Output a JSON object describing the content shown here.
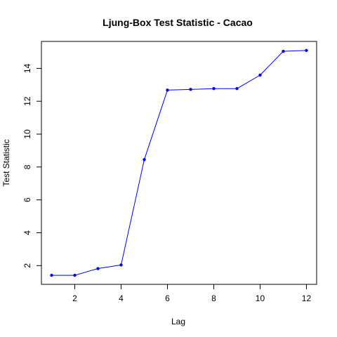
{
  "chart_data": {
    "type": "line",
    "title": "Ljung-Box Test Statistic - Cacao",
    "xlabel": "Lag",
    "ylabel": "Test Statistic",
    "x": [
      1,
      2,
      3,
      4,
      5,
      6,
      7,
      8,
      9,
      10,
      11,
      12
    ],
    "y": [
      1.41,
      1.41,
      1.82,
      2.04,
      8.45,
      12.68,
      12.72,
      12.77,
      12.77,
      13.59,
      15.04,
      15.09
    ],
    "xlim": [
      0.56,
      12.44
    ],
    "ylim": [
      0.86,
      15.64
    ],
    "xticks": [
      2,
      4,
      6,
      8,
      10,
      12
    ],
    "yticks": [
      2,
      4,
      6,
      8,
      10,
      12,
      14
    ],
    "line_color": "#0000ff",
    "point_color": "#0000ff",
    "grid": false,
    "legend": "none"
  }
}
